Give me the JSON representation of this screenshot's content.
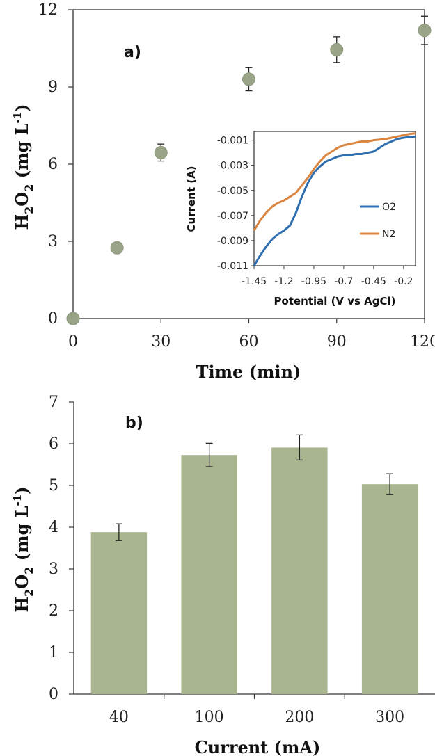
{
  "colors": {
    "marker": "#9aa587",
    "bar": "#a9b58e",
    "o2": "#2f6fb0",
    "n2": "#d9843f",
    "axis": "#333333"
  },
  "chart_data": [
    {
      "panel_label": "a)",
      "type": "scatter",
      "xlabel": "Time (min)",
      "ylabel_parts": [
        "H",
        "2",
        "O",
        "2",
        " (mg L",
        "-1",
        ")"
      ],
      "xlim": [
        0,
        120
      ],
      "ylim": [
        0,
        12
      ],
      "xticks": [
        "0",
        "30",
        "60",
        "90",
        "120"
      ],
      "yticks": [
        "0",
        "3",
        "6",
        "9",
        "12"
      ],
      "x": [
        0,
        15,
        30,
        60,
        90,
        120
      ],
      "y": [
        0,
        2.75,
        6.45,
        9.3,
        10.45,
        11.2
      ],
      "err": [
        0,
        0,
        0.33,
        0.45,
        0.5,
        0.55
      ]
    },
    {
      "panel_label": "inset",
      "type": "line",
      "xlabel": "Potential (V vs AgCl)",
      "ylabel": "Current (A)",
      "xlim": [
        -1.45,
        -0.1
      ],
      "ylim": [
        -0.011,
        -0.0003
      ],
      "xticks": [
        "-1.45",
        "-1.2",
        "-0.95",
        "-0.7",
        "-0.45",
        "-0.2"
      ],
      "yticks": [
        "-0.001",
        "-0.003",
        "-0.005",
        "-0.007",
        "-0.009",
        "-0.011"
      ],
      "legend_position": "lower-right",
      "series": [
        {
          "name": "O2",
          "x": [
            -1.45,
            -1.4,
            -1.35,
            -1.3,
            -1.25,
            -1.2,
            -1.15,
            -1.1,
            -1.05,
            -1.0,
            -0.95,
            -0.9,
            -0.85,
            -0.8,
            -0.75,
            -0.7,
            -0.65,
            -0.6,
            -0.55,
            -0.5,
            -0.45,
            -0.4,
            -0.35,
            -0.3,
            -0.25,
            -0.2,
            -0.15,
            -0.1
          ],
          "y": [
            -0.011,
            -0.0102,
            -0.0095,
            -0.0089,
            -0.0085,
            -0.0082,
            -0.0078,
            -0.0068,
            -0.0055,
            -0.0044,
            -0.0036,
            -0.0031,
            -0.0027,
            -0.0025,
            -0.0023,
            -0.0022,
            -0.0022,
            -0.0021,
            -0.0021,
            -0.002,
            -0.0019,
            -0.0016,
            -0.0013,
            -0.0011,
            -0.0009,
            -0.0008,
            -0.00075,
            -0.0007
          ]
        },
        {
          "name": "N2",
          "x": [
            -1.45,
            -1.4,
            -1.35,
            -1.3,
            -1.25,
            -1.2,
            -1.15,
            -1.1,
            -1.05,
            -1.0,
            -0.95,
            -0.9,
            -0.85,
            -0.8,
            -0.75,
            -0.7,
            -0.65,
            -0.6,
            -0.55,
            -0.5,
            -0.45,
            -0.4,
            -0.35,
            -0.3,
            -0.25,
            -0.2,
            -0.15,
            -0.1
          ],
          "y": [
            -0.0082,
            -0.0074,
            -0.0068,
            -0.0063,
            -0.006,
            -0.0058,
            -0.0055,
            -0.0052,
            -0.0046,
            -0.004,
            -0.0033,
            -0.0027,
            -0.0022,
            -0.0019,
            -0.0016,
            -0.0014,
            -0.0013,
            -0.0012,
            -0.0011,
            -0.0011,
            -0.001,
            -0.00095,
            -0.0009,
            -0.0008,
            -0.0007,
            -0.0006,
            -0.0005,
            -0.00045
          ]
        }
      ]
    },
    {
      "panel_label": "b)",
      "type": "bar",
      "xlabel": "Current (mA)",
      "ylabel_parts": [
        "H",
        "2",
        "O",
        "2",
        " (mg L",
        "-1",
        ")"
      ],
      "ylim": [
        0,
        7
      ],
      "yticks": [
        "0",
        "1",
        "2",
        "3",
        "4",
        "5",
        "6",
        "7"
      ],
      "categories": [
        "40",
        "100",
        "200",
        "300"
      ],
      "values": [
        3.88,
        5.73,
        5.91,
        5.03
      ],
      "err": [
        0.2,
        0.28,
        0.3,
        0.25
      ]
    }
  ]
}
